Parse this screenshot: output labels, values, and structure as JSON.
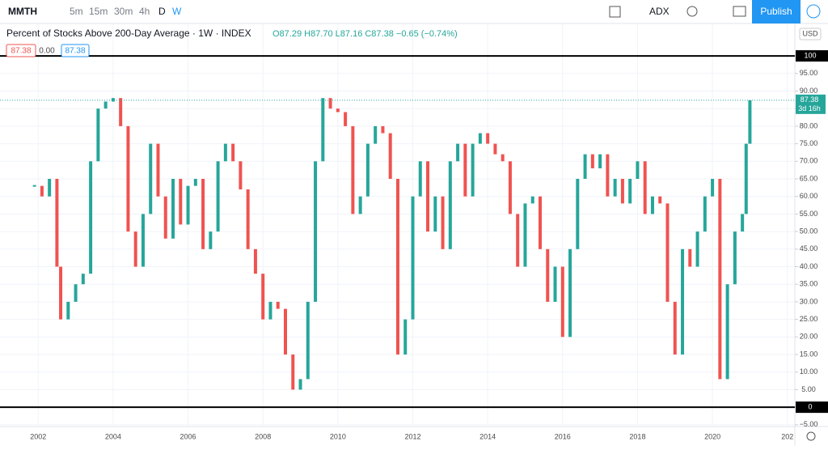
{
  "toolbar": {
    "symbol": "MMTH",
    "intervals": [
      "5m",
      "15m",
      "30m",
      "4h",
      "D",
      "W"
    ],
    "compare": "ADX",
    "publish": "Publish"
  },
  "legend": {
    "title": "Percent of Stocks Above 200-Day Average · 1W · INDEX",
    "ohlc": "O87.29 H87.70 L87.16 C87.38 −0.65 (−0.74%)",
    "badges": [
      "87.38",
      "0.00",
      "87.38"
    ]
  },
  "currency": "USD",
  "countdown": "3d 16h",
  "chart_data": {
    "type": "candles",
    "x": [
      2001.9,
      2002.1,
      2002.3,
      2002.5,
      2002.6,
      2002.8,
      2003.0,
      2003.2,
      2003.4,
      2003.6,
      2003.8,
      2004.0,
      2004.2,
      2004.4,
      2004.6,
      2004.8,
      2005.0,
      2005.2,
      2005.4,
      2005.6,
      2005.8,
      2006.0,
      2006.2,
      2006.4,
      2006.6,
      2006.8,
      2007.0,
      2007.2,
      2007.4,
      2007.6,
      2007.8,
      2008.0,
      2008.2,
      2008.4,
      2008.6,
      2008.8,
      2009.0,
      2009.2,
      2009.4,
      2009.6,
      2009.8,
      2010.0,
      2010.2,
      2010.4,
      2010.6,
      2010.8,
      2011.0,
      2011.2,
      2011.4,
      2011.6,
      2011.8,
      2012.0,
      2012.2,
      2012.4,
      2012.6,
      2012.8,
      2013.0,
      2013.2,
      2013.4,
      2013.6,
      2013.8,
      2014.0,
      2014.2,
      2014.4,
      2014.6,
      2014.8,
      2015.0,
      2015.2,
      2015.4,
      2015.6,
      2015.8,
      2016.0,
      2016.2,
      2016.4,
      2016.6,
      2016.8,
      2017.0,
      2017.2,
      2017.4,
      2017.6,
      2017.8,
      2018.0,
      2018.2,
      2018.4,
      2018.6,
      2018.8,
      2019.0,
      2019.2,
      2019.4,
      2019.6,
      2019.8,
      2020.0,
      2020.2,
      2020.4,
      2020.6,
      2020.8,
      2020.9,
      2021.0
    ],
    "values": [
      63,
      60,
      65,
      40,
      25,
      30,
      35,
      38,
      70,
      85,
      87,
      88,
      80,
      50,
      40,
      55,
      75,
      60,
      48,
      65,
      52,
      63,
      65,
      45,
      50,
      70,
      75,
      70,
      62,
      45,
      38,
      25,
      30,
      28,
      15,
      5,
      8,
      30,
      70,
      88,
      85,
      84,
      80,
      55,
      60,
      75,
      80,
      78,
      65,
      15,
      25,
      60,
      70,
      50,
      60,
      45,
      70,
      75,
      60,
      75,
      78,
      75,
      72,
      70,
      55,
      40,
      58,
      60,
      45,
      30,
      40,
      20,
      45,
      65,
      72,
      68,
      72,
      60,
      65,
      58,
      65,
      70,
      55,
      60,
      58,
      30,
      15,
      45,
      40,
      50,
      60,
      65,
      8,
      35,
      50,
      55,
      75,
      87.38
    ],
    "up_color": "#26a69a",
    "down_color": "#ef5350",
    "hlines": [
      100,
      0
    ],
    "hline_color": "#000000",
    "xlim": [
      2000.98,
      2022.2
    ],
    "xticks": [
      2002,
      2004,
      2006,
      2008,
      2010,
      2012,
      2014,
      2016,
      2018,
      2020,
      {
        "value": 2022,
        "label": "202"
      }
    ],
    "ylim": [
      -5.5,
      109
    ],
    "yticks": [
      {
        "value": -5,
        "label": "−5.00"
      },
      {
        "value": 0,
        "label": "0.00"
      },
      {
        "value": 5,
        "label": "5.00"
      },
      {
        "value": 10,
        "label": "10.00"
      },
      {
        "value": 15,
        "label": "15.00"
      },
      {
        "value": 20,
        "label": "20.00"
      },
      {
        "value": 25,
        "label": "25.00"
      },
      {
        "value": 30,
        "label": "30.00"
      },
      {
        "value": 35,
        "label": "35.00"
      },
      {
        "value": 40,
        "label": "40.00"
      },
      {
        "value": 45,
        "label": "45.00"
      },
      {
        "value": 50,
        "label": "50.00"
      },
      {
        "value": 55,
        "label": "55.00"
      },
      {
        "value": 60,
        "label": "60.00"
      },
      {
        "value": 65,
        "label": "65.00"
      },
      {
        "value": 70,
        "label": "70.00"
      },
      {
        "value": 75,
        "label": "75.00"
      },
      {
        "value": 80,
        "label": "80.00"
      },
      {
        "value": 85,
        "label": "85.00"
      },
      {
        "value": 90,
        "label": "90.00"
      },
      {
        "value": 95,
        "label": "95.00"
      },
      {
        "value": 100,
        "label": "100.00"
      }
    ],
    "grid": true
  }
}
